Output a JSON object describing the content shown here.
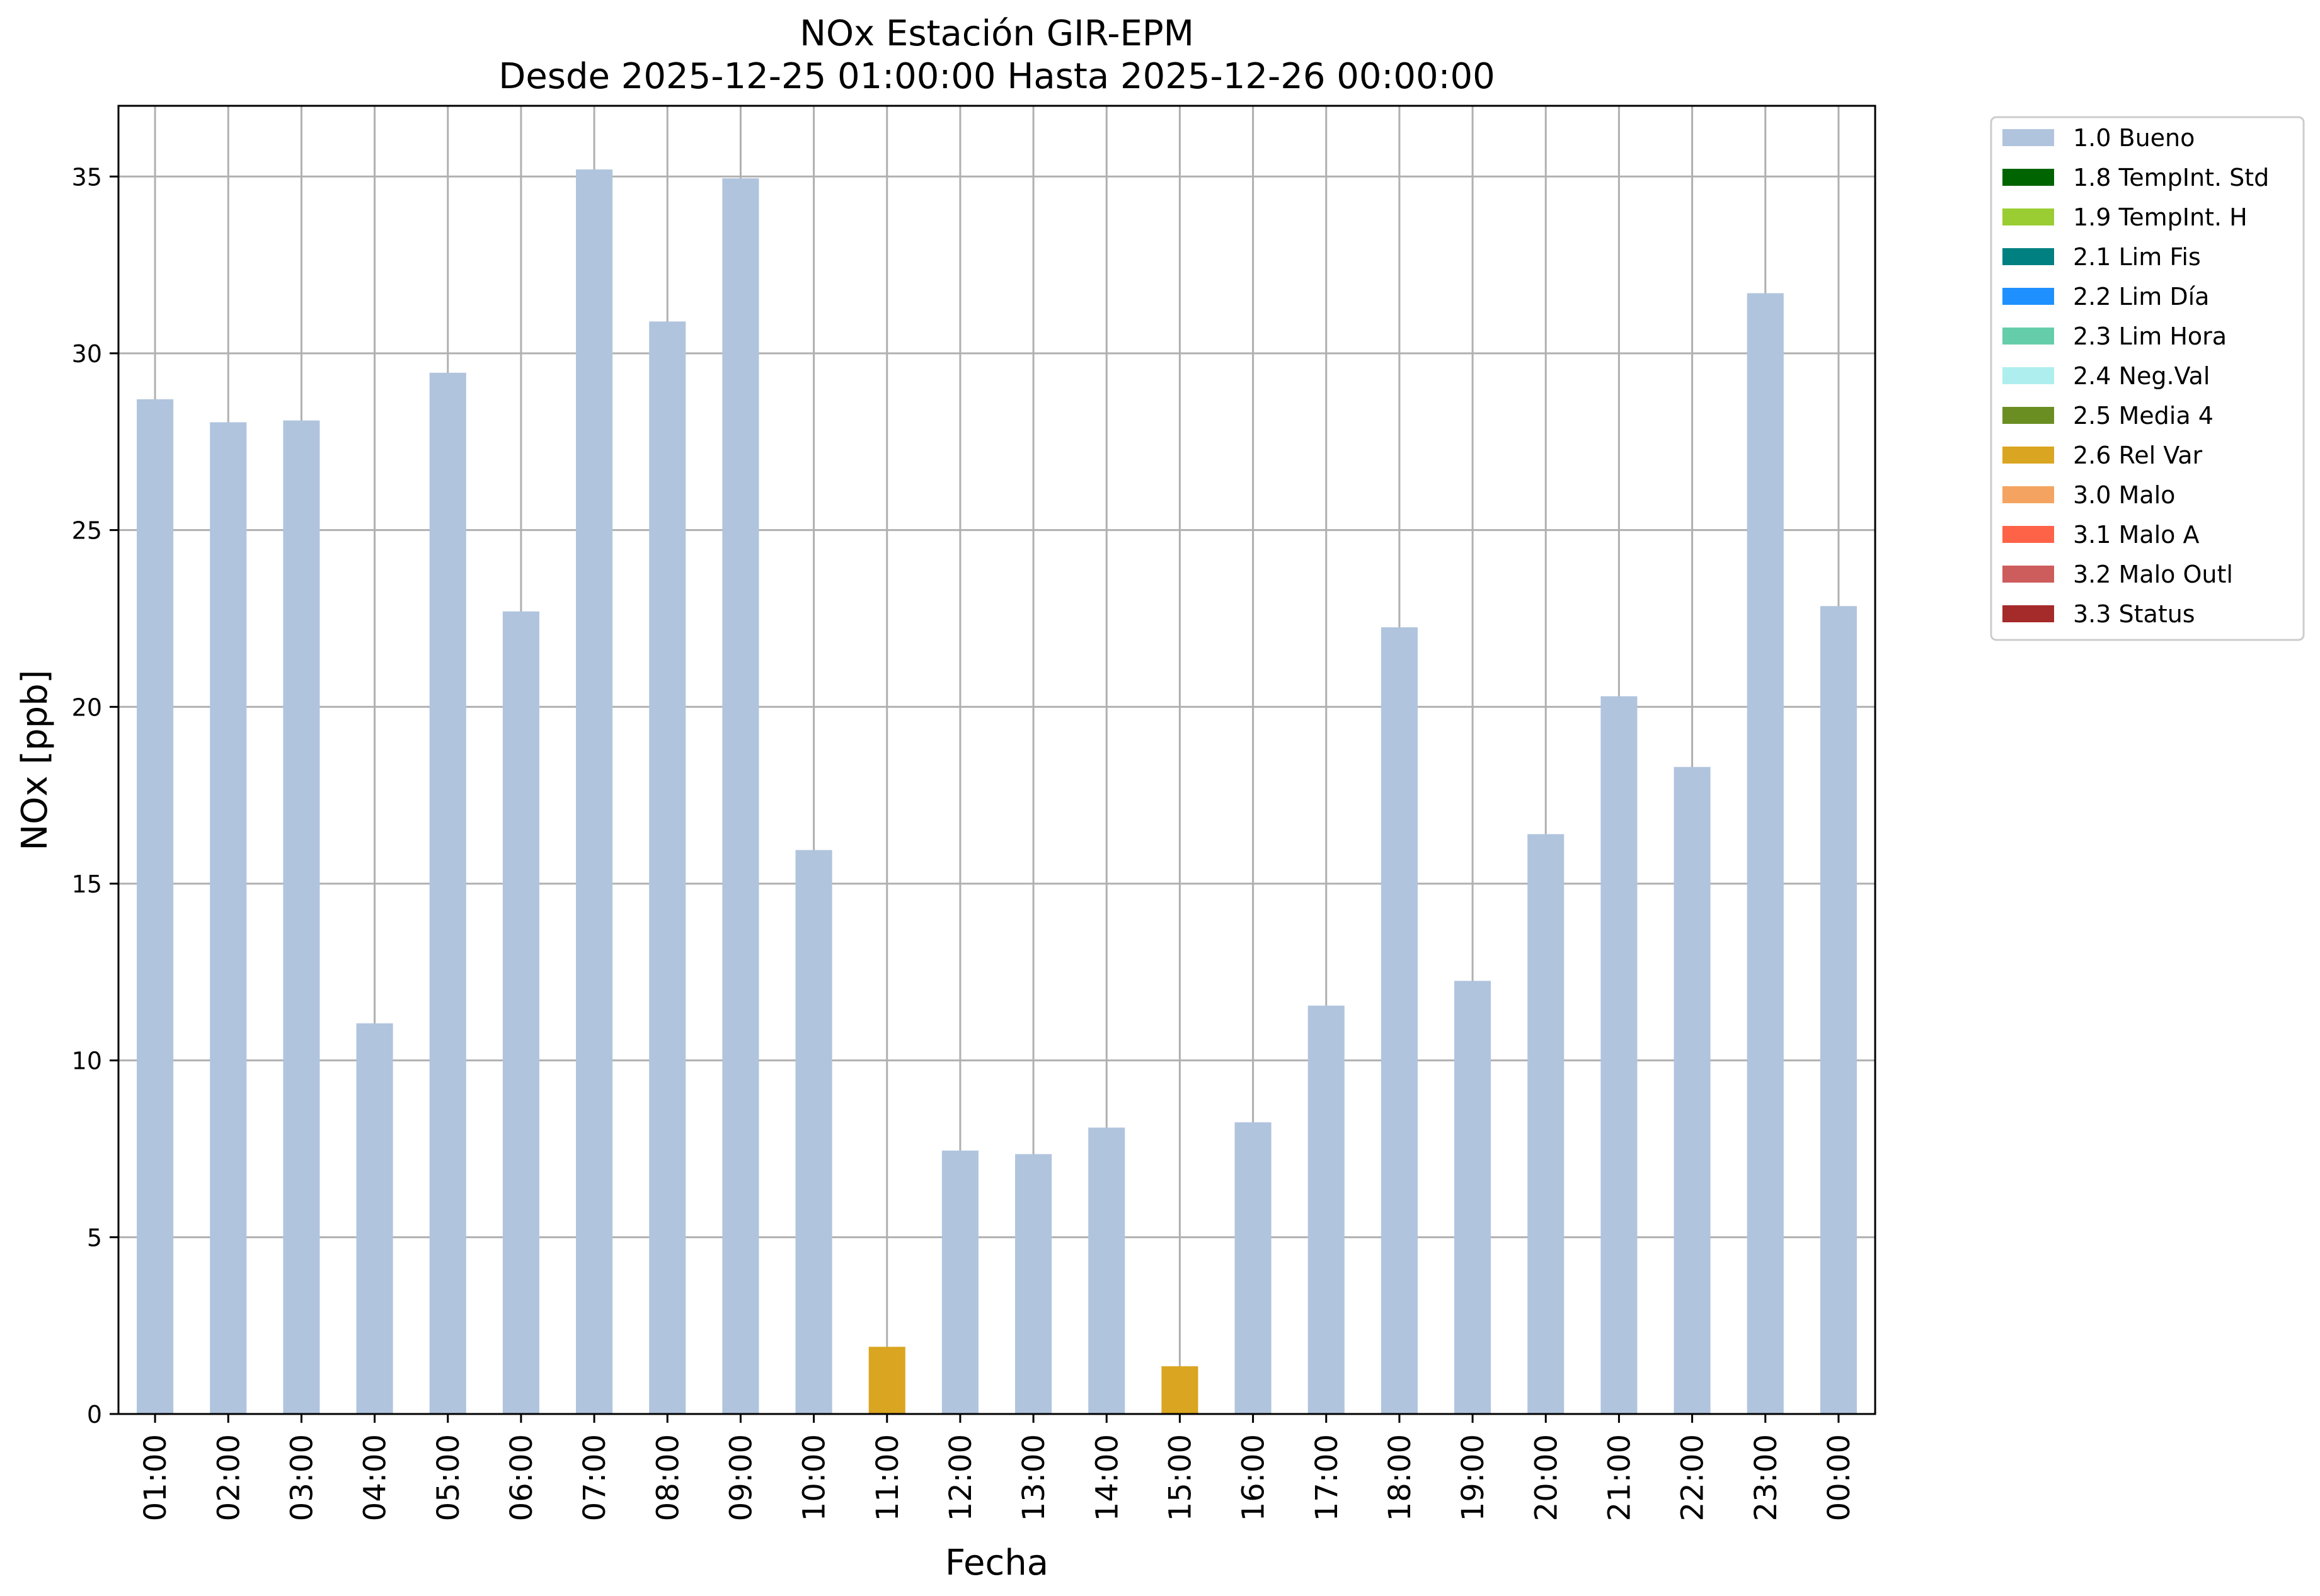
{
  "chart_data": {
    "type": "bar",
    "title": "NOx Estación GIR-EPM",
    "subtitle": "Desde 2025-12-25 01:00:00 Hasta 2025-12-26 00:00:00",
    "xlabel": "Fecha",
    "ylabel": "NOx [ppb]",
    "ylim": [
      0,
      37
    ],
    "yticks": [
      0,
      5,
      10,
      15,
      20,
      25,
      30,
      35
    ],
    "grid": true,
    "legend_position": "outside-top-right",
    "categories": [
      "01:00",
      "02:00",
      "03:00",
      "04:00",
      "05:00",
      "06:00",
      "07:00",
      "08:00",
      "09:00",
      "10:00",
      "11:00",
      "12:00",
      "13:00",
      "14:00",
      "15:00",
      "16:00",
      "17:00",
      "18:00",
      "19:00",
      "20:00",
      "21:00",
      "22:00",
      "23:00",
      "00:00"
    ],
    "values": [
      28.7,
      28.05,
      28.1,
      11.05,
      29.45,
      22.7,
      35.2,
      30.9,
      34.95,
      15.95,
      1.9,
      7.45,
      7.35,
      8.1,
      1.35,
      8.25,
      11.55,
      22.25,
      12.25,
      16.4,
      20.3,
      18.3,
      31.7,
      22.85
    ],
    "flags": [
      "1.0 Bueno",
      "1.0 Bueno",
      "1.0 Bueno",
      "1.0 Bueno",
      "1.0 Bueno",
      "1.0 Bueno",
      "1.0 Bueno",
      "1.0 Bueno",
      "1.0 Bueno",
      "1.0 Bueno",
      "2.6 Rel Var",
      "1.0 Bueno",
      "1.0 Bueno",
      "1.0 Bueno",
      "2.6 Rel Var",
      "1.0 Bueno",
      "1.0 Bueno",
      "1.0 Bueno",
      "1.0 Bueno",
      "1.0 Bueno",
      "1.0 Bueno",
      "1.0 Bueno",
      "1.0 Bueno",
      "1.0 Bueno"
    ],
    "legend": [
      {
        "label": "1.0 Bueno",
        "color": "#B0C4DE"
      },
      {
        "label": "1.8 TempInt. Std",
        "color": "#006400"
      },
      {
        "label": "1.9 TempInt. H",
        "color": "#9ACD32"
      },
      {
        "label": "2.1 Lim Fis",
        "color": "#008080"
      },
      {
        "label": "2.2 Lim Día",
        "color": "#1E90FF"
      },
      {
        "label": "2.3 Lim Hora",
        "color": "#66CDAA"
      },
      {
        "label": "2.4 Neg.Val",
        "color": "#AFEEEE"
      },
      {
        "label": "2.5 Media 4",
        "color": "#6B8E23"
      },
      {
        "label": "2.6 Rel Var",
        "color": "#DAA520"
      },
      {
        "label": "3.0 Malo",
        "color": "#F4A460"
      },
      {
        "label": "3.1 Malo A",
        "color": "#FF6347"
      },
      {
        "label": "3.2 Malo Outl",
        "color": "#CD5C5C"
      },
      {
        "label": "3.3 Status",
        "color": "#A52A2A"
      }
    ]
  }
}
